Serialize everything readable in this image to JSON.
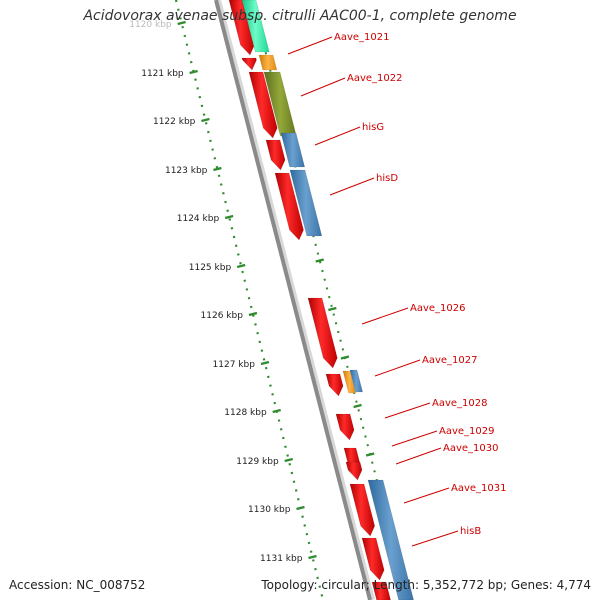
{
  "header": {
    "title": "Acidovorax avenae subsp. citrulli AAC00-1, complete genome"
  },
  "footer": {
    "accession": "Accession: NC_008752",
    "summary": "Topology: circular; Length: 5,352,772 bp; Genes: 4,774"
  },
  "ruler": {
    "tick_labels": [
      "1120 kbp",
      "1121 kbp",
      "1122 kbp",
      "1123 kbp",
      "1124 kbp",
      "1125 kbp",
      "1126 kbp",
      "1127 kbp",
      "1128 kbp",
      "1129 kbp",
      "1130 kbp",
      "1131 kbp"
    ],
    "color": "#2e8b2e"
  },
  "gene_labels": [
    "Aave_1021",
    "Aave_1022",
    "hisG",
    "hisD",
    "Aave_1026",
    "Aave_1027",
    "Aave_1028",
    "Aave_1029",
    "Aave_1030",
    "Aave_1031",
    "hisB"
  ],
  "colors": {
    "cds": "#ff0000",
    "label": "#cc0000",
    "backbone": "#888888",
    "feature_blue": "#4a86b8",
    "feature_orange": "#f39c12",
    "feature_olive": "#7a8f2a",
    "feature_teal": "#2ee6a6"
  }
}
